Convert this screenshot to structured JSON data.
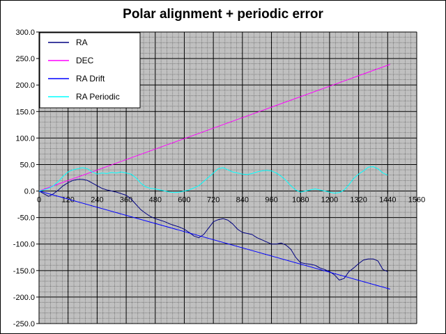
{
  "chart_data": {
    "type": "line",
    "title": "Polar alignment + periodic error",
    "xlabel": "",
    "ylabel": "",
    "xlim": [
      0,
      1560
    ],
    "ylim": [
      -250,
      300
    ],
    "x_ticks": [
      0,
      120,
      240,
      360,
      480,
      600,
      720,
      840,
      960,
      1080,
      1200,
      1320,
      1440,
      1560
    ],
    "y_ticks": [
      -250,
      -200,
      -150,
      -100,
      -50,
      0,
      50,
      100,
      150,
      200,
      250,
      300
    ],
    "y_tick_labels": [
      "-250.0",
      "-200.0",
      "-150.0",
      "-100.0",
      "-50.0",
      "0.0",
      "50.0",
      "100.0",
      "150.0",
      "200.0",
      "250.0",
      "300.0"
    ],
    "grid": true,
    "legend_position": "top-left",
    "series": [
      {
        "name": "RA",
        "color": "#000080",
        "x": [
          0,
          20,
          40,
          60,
          80,
          100,
          120,
          140,
          160,
          180,
          200,
          220,
          240,
          260,
          280,
          300,
          320,
          340,
          360,
          380,
          400,
          420,
          440,
          460,
          480,
          500,
          520,
          540,
          560,
          580,
          600,
          620,
          640,
          660,
          680,
          700,
          720,
          740,
          760,
          780,
          800,
          820,
          840,
          860,
          880,
          900,
          920,
          940,
          960,
          980,
          1000,
          1020,
          1040,
          1060,
          1080,
          1100,
          1120,
          1140,
          1160,
          1180,
          1200,
          1220,
          1240,
          1260,
          1280,
          1300,
          1320,
          1340,
          1360,
          1380,
          1400,
          1420,
          1440
        ],
        "y": [
          0,
          -5,
          -10,
          -5,
          2,
          10,
          16,
          20,
          22,
          22,
          20,
          15,
          10,
          5,
          2,
          0,
          -2,
          -5,
          -8,
          -15,
          -25,
          -35,
          -42,
          -48,
          -52,
          -55,
          -58,
          -62,
          -65,
          -68,
          -72,
          -78,
          -85,
          -88,
          -82,
          -70,
          -58,
          -54,
          -52,
          -55,
          -62,
          -72,
          -78,
          -80,
          -82,
          -88,
          -92,
          -96,
          -100,
          -100,
          -98,
          -102,
          -110,
          -125,
          -135,
          -137,
          -138,
          -140,
          -145,
          -148,
          -152,
          -158,
          -168,
          -165,
          -152,
          -145,
          -137,
          -130,
          -128,
          -128,
          -132,
          -148,
          -152
        ]
      },
      {
        "name": "DEC",
        "color": "#ff00ff",
        "x": [
          0,
          1450
        ],
        "y": [
          0,
          239
        ]
      },
      {
        "name": "RA Drift",
        "color": "#0000ff",
        "x": [
          0,
          1450
        ],
        "y": [
          0,
          -185
        ]
      },
      {
        "name": "RA Periodic",
        "color": "#00ffff",
        "x": [
          0,
          20,
          40,
          60,
          80,
          100,
          120,
          140,
          160,
          180,
          200,
          220,
          240,
          260,
          280,
          300,
          320,
          340,
          360,
          380,
          400,
          420,
          440,
          460,
          480,
          500,
          520,
          540,
          560,
          580,
          600,
          620,
          640,
          660,
          680,
          700,
          720,
          740,
          760,
          780,
          800,
          820,
          840,
          860,
          880,
          900,
          920,
          940,
          960,
          980,
          1000,
          1020,
          1040,
          1060,
          1080,
          1100,
          1120,
          1140,
          1160,
          1180,
          1200,
          1220,
          1240,
          1260,
          1280,
          1300,
          1320,
          1340,
          1360,
          1380,
          1400,
          1420,
          1440
        ],
        "y": [
          0,
          2,
          5,
          10,
          18,
          28,
          36,
          40,
          42,
          44,
          42,
          36,
          32,
          34,
          33,
          35,
          34,
          36,
          34,
          32,
          25,
          15,
          8,
          5,
          4,
          2,
          0,
          -2,
          -3,
          -2,
          0,
          2,
          6,
          10,
          18,
          26,
          34,
          42,
          44,
          40,
          36,
          34,
          32,
          31,
          33,
          36,
          38,
          39,
          38,
          34,
          28,
          20,
          10,
          2,
          -2,
          0,
          2,
          4,
          2,
          0,
          -2,
          -4,
          -3,
          2,
          12,
          24,
          32,
          38,
          45,
          46,
          42,
          34,
          30
        ]
      }
    ]
  }
}
